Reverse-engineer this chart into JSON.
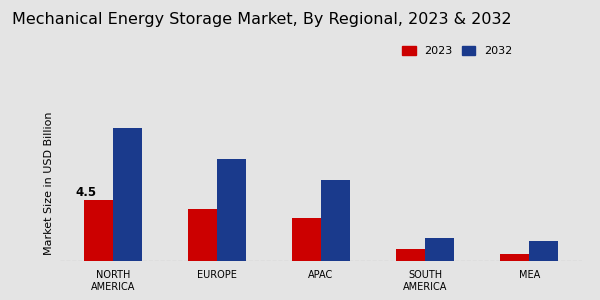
{
  "title": "Mechanical Energy Storage Market, By Regional, 2023 & 2032",
  "ylabel": "Market Size in USD Billion",
  "categories": [
    "NORTH\nAMERICA",
    "EUROPE",
    "APAC",
    "SOUTH\nAMERICA",
    "MEA"
  ],
  "values_2023": [
    4.5,
    3.8,
    3.2,
    0.85,
    0.55
  ],
  "values_2032": [
    9.8,
    7.5,
    6.0,
    1.7,
    1.5
  ],
  "color_2023": "#cc0000",
  "color_2032": "#1a3a8c",
  "annotation_value": "4.5",
  "background_color": "#e4e4e4",
  "bar_width": 0.28,
  "ylim": [
    0,
    11.5
  ],
  "legend_labels": [
    "2023",
    "2032"
  ],
  "bottom_bar_color": "#cc0000",
  "title_fontsize": 11.5,
  "axis_label_fontsize": 8,
  "tick_fontsize": 7
}
